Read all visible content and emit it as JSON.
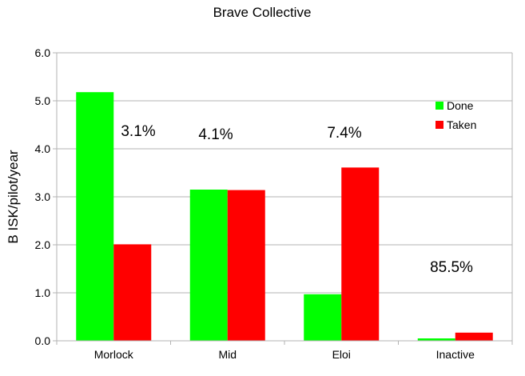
{
  "chart_data": {
    "type": "bar",
    "title": "Brave Collective",
    "xlabel": "",
    "ylabel": "B ISK/pilot/year",
    "categories": [
      "Morlock",
      "Mid",
      "Eloi",
      "Inactive"
    ],
    "series": [
      {
        "name": "Done",
        "values": [
          5.18,
          3.15,
          0.97,
          0.05
        ]
      },
      {
        "name": "Taken",
        "values": [
          2.01,
          3.14,
          3.61,
          0.17
        ]
      }
    ],
    "ylim": [
      0,
      6
    ],
    "yticks": [
      "0.0",
      "1.0",
      "2.0",
      "3.0",
      "4.0",
      "5.0",
      "6.0"
    ],
    "annotations": [
      "3.1%",
      "4.1%",
      "7.4%",
      "85.5%"
    ],
    "grid": true,
    "legend": "top-right"
  },
  "colors": {
    "Done": "#00ff00",
    "Taken": "#ff0000",
    "grid": "#b3b3b3",
    "axis": "#b3b3b3"
  }
}
